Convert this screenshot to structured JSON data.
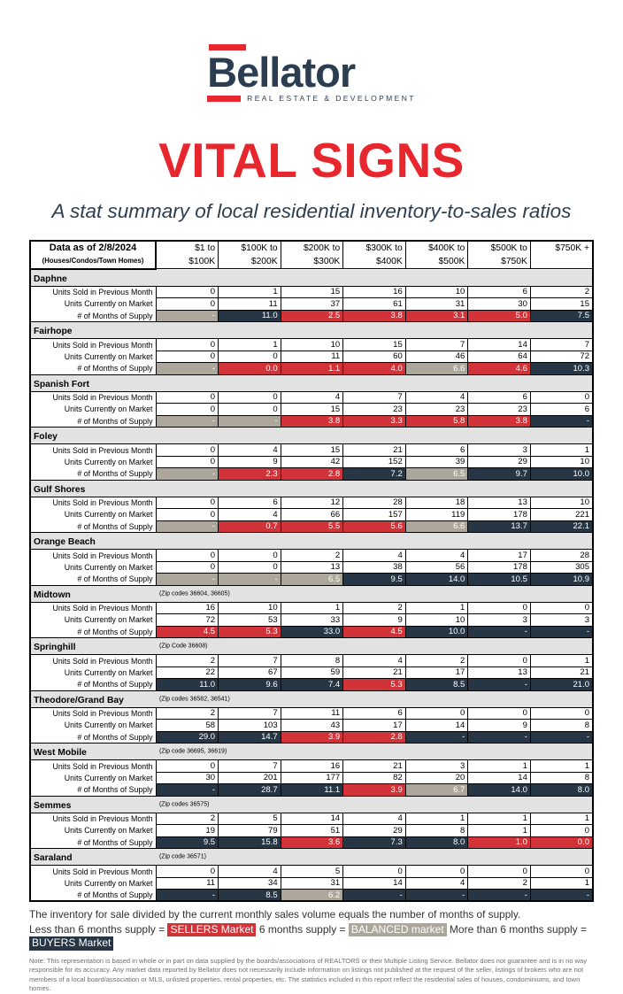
{
  "logo": {
    "brand": "Bellator",
    "tagline": "REAL ESTATE & DEVELOPMENT"
  },
  "title": "VITAL SIGNS",
  "subtitle": "A stat summary of local residential inventory-to-sales ratios",
  "colors": {
    "sellers": "#d13338",
    "balanced": "#ada69b",
    "buyers": "#263645",
    "brand_navy": "#2b3d50",
    "brand_red": "#e8262d"
  },
  "table": {
    "corner_title": "Data as of 2/8/2024",
    "corner_subtitle": "(Houses/Condos/Town Homes)",
    "columns": [
      {
        "line1": "$1 to",
        "line2": "$100K"
      },
      {
        "line1": "$100K to",
        "line2": "$200K"
      },
      {
        "line1": "$200K to",
        "line2": "$300K"
      },
      {
        "line1": "$300K to",
        "line2": "$400K"
      },
      {
        "line1": "$400K to",
        "line2": "$500K"
      },
      {
        "line1": "$500K to",
        "line2": "$750K"
      },
      {
        "line1": "$750K +",
        "line2": ""
      }
    ],
    "row_labels": [
      "Units Sold in Previous Month",
      "Units Currently on Market",
      "# of Months of Supply"
    ],
    "regions": [
      {
        "name": "Daphne",
        "zip": "",
        "sold": [
          0,
          1,
          15,
          16,
          10,
          6,
          2
        ],
        "market": [
          0,
          11,
          37,
          61,
          31,
          30,
          15
        ],
        "supply": [
          "-",
          "11.0",
          "2.5",
          "3.8",
          "3.1",
          "5.0",
          "7.5"
        ],
        "supply_class": [
          "balanced",
          "buyers",
          "sellers",
          "sellers",
          "sellers",
          "sellers",
          "buyers"
        ]
      },
      {
        "name": "Fairhope",
        "zip": "",
        "sold": [
          0,
          1,
          10,
          15,
          7,
          14,
          7
        ],
        "market": [
          0,
          0,
          11,
          60,
          46,
          64,
          72
        ],
        "supply": [
          "-",
          "0.0",
          "1.1",
          "4.0",
          "6.6",
          "4.6",
          "10.3"
        ],
        "supply_class": [
          "balanced",
          "sellers",
          "sellers",
          "sellers",
          "balanced",
          "sellers",
          "buyers"
        ]
      },
      {
        "name": "Spanish Fort",
        "zip": "",
        "sold": [
          0,
          0,
          4,
          7,
          4,
          6,
          0
        ],
        "market": [
          0,
          0,
          15,
          23,
          23,
          23,
          6
        ],
        "supply": [
          "-",
          "-",
          "3.8",
          "3.3",
          "5.8",
          "3.8",
          "-"
        ],
        "supply_class": [
          "balanced",
          "balanced",
          "sellers",
          "sellers",
          "sellers",
          "sellers",
          "buyers"
        ]
      },
      {
        "name": "Foley",
        "zip": "",
        "sold": [
          0,
          4,
          15,
          21,
          6,
          3,
          1
        ],
        "market": [
          0,
          9,
          42,
          152,
          39,
          29,
          10
        ],
        "supply": [
          "-",
          "2.3",
          "2.8",
          "7.2",
          "6.5",
          "9.7",
          "10.0"
        ],
        "supply_class": [
          "balanced",
          "sellers",
          "sellers",
          "buyers",
          "balanced",
          "buyers",
          "buyers"
        ]
      },
      {
        "name": "Gulf Shores",
        "zip": "",
        "sold": [
          0,
          6,
          12,
          28,
          18,
          13,
          10
        ],
        "market": [
          0,
          4,
          66,
          157,
          119,
          178,
          221
        ],
        "supply": [
          "-",
          "0.7",
          "5.5",
          "5.6",
          "6.6",
          "13.7",
          "22.1"
        ],
        "supply_class": [
          "balanced",
          "sellers",
          "sellers",
          "sellers",
          "balanced",
          "buyers",
          "buyers"
        ]
      },
      {
        "name": "Orange Beach",
        "zip": "",
        "sold": [
          0,
          0,
          2,
          4,
          4,
          17,
          28
        ],
        "market": [
          0,
          0,
          13,
          38,
          56,
          178,
          305
        ],
        "supply": [
          "-",
          "-",
          "6.5",
          "9.5",
          "14.0",
          "10.5",
          "10.9"
        ],
        "supply_class": [
          "balanced",
          "balanced",
          "balanced",
          "buyers",
          "buyers",
          "buyers",
          "buyers"
        ]
      },
      {
        "name": "Midtown",
        "zip": "(Zip codes 36604, 36605)",
        "sold": [
          16,
          10,
          1,
          2,
          1,
          0,
          0
        ],
        "market": [
          72,
          53,
          33,
          9,
          10,
          3,
          3
        ],
        "supply": [
          "4.5",
          "5.3",
          "33.0",
          "4.5",
          "10.0",
          "-",
          "-"
        ],
        "supply_class": [
          "sellers",
          "sellers",
          "buyers",
          "sellers",
          "buyers",
          "buyers",
          "buyers"
        ]
      },
      {
        "name": "Springhill",
        "zip": "(Zip Code 36608)",
        "sold": [
          2,
          7,
          8,
          4,
          2,
          0,
          1
        ],
        "market": [
          22,
          67,
          59,
          21,
          17,
          13,
          21
        ],
        "supply": [
          "11.0",
          "9.6",
          "7.4",
          "5.3",
          "8.5",
          "-",
          "21.0"
        ],
        "supply_class": [
          "buyers",
          "buyers",
          "buyers",
          "sellers",
          "buyers",
          "buyers",
          "buyers"
        ]
      },
      {
        "name": "Theodore/Grand Bay",
        "zip": "(Zip codes 36582, 36541)",
        "sold": [
          2,
          7,
          11,
          6,
          0,
          0,
          0
        ],
        "market": [
          58,
          103,
          43,
          17,
          14,
          9,
          8
        ],
        "supply": [
          "29.0",
          "14.7",
          "3.9",
          "2.8",
          "-",
          "-",
          "-"
        ],
        "supply_class": [
          "buyers",
          "buyers",
          "sellers",
          "sellers",
          "buyers",
          "buyers",
          "buyers"
        ]
      },
      {
        "name": "West Mobile",
        "zip": "(Zip code 36695, 36619)",
        "sold": [
          0,
          7,
          16,
          21,
          3,
          1,
          1
        ],
        "market": [
          30,
          201,
          177,
          82,
          20,
          14,
          8
        ],
        "supply": [
          "-",
          "28.7",
          "11.1",
          "3.9",
          "6.7",
          "14.0",
          "8.0"
        ],
        "supply_class": [
          "buyers",
          "buyers",
          "buyers",
          "sellers",
          "balanced",
          "buyers",
          "buyers"
        ]
      },
      {
        "name": "Semmes",
        "zip": "(Zip codes 36575)",
        "sold": [
          2,
          5,
          14,
          4,
          1,
          1,
          1
        ],
        "market": [
          19,
          79,
          51,
          29,
          8,
          1,
          0
        ],
        "supply": [
          "9.5",
          "15.8",
          "3.6",
          "7.3",
          "8.0",
          "1.0",
          "0.0"
        ],
        "supply_class": [
          "buyers",
          "buyers",
          "sellers",
          "buyers",
          "buyers",
          "sellers",
          "sellers"
        ]
      },
      {
        "name": "Saraland",
        "zip": "(Zip code 36571)",
        "sold": [
          0,
          4,
          5,
          0,
          0,
          0,
          0
        ],
        "market": [
          11,
          34,
          31,
          14,
          4,
          2,
          1
        ],
        "supply": [
          "-",
          "8.5",
          "6.2",
          "-",
          "-",
          "-",
          "-"
        ],
        "supply_class": [
          "buyers",
          "buyers",
          "balanced",
          "buyers",
          "buyers",
          "buyers",
          "buyers"
        ]
      }
    ]
  },
  "footer": {
    "line1": "The inventory for sale divided by the current monthly sales volume equals the number of months of supply.",
    "legend": {
      "seg1": "Less than 6 months supply = ",
      "sellers_label": "SELLERS Market",
      "seg2": " 6 months supply = ",
      "balanced_label": "BALANCED market",
      "seg3": "  More than 6 months supply = ",
      "buyers_label": "BUYERS Market"
    },
    "note": "Note: This representation is based in whole or in part on data supplied by the boards/associations of REALTORS or their Multiple Listing Service. Bellator does not guarantee and is in no way responsible for its accuracy. Any market data reported by Bellator does not necessarily include information on listings not published at the request of the seller, listings of brokers who are not members of a local board/association or MLS, unlisted properties, rental properties, etc. The statistics included in this report reflect the residential sales of houses, condominiums, and town homes."
  }
}
